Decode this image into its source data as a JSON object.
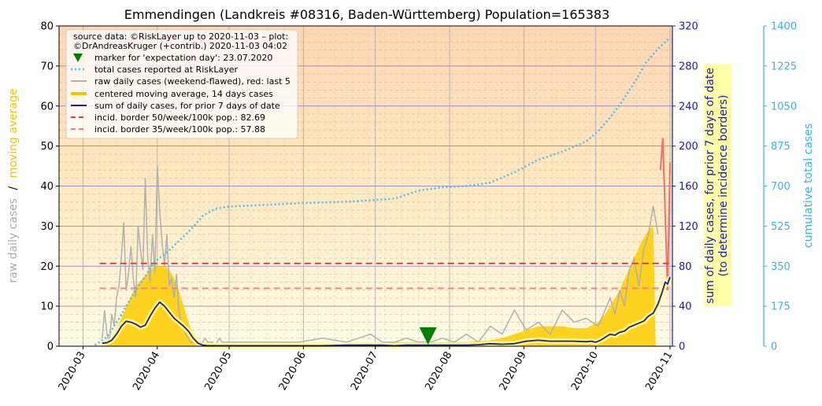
{
  "chart_data": {
    "type": "line",
    "title": "Emmendingen (Landkreis #08316, Baden-Württemberg) Population=165383",
    "ylabel_left": {
      "part1": "raw daily cases",
      "sep": "/",
      "part2": "moving average"
    },
    "ylabel_right1": [
      "sum of daily cases, for prior 7 days of date",
      "(to determine incidence borders)"
    ],
    "ylabel_right2": "cumulative total cases",
    "xlim_days": [
      -10,
      246
    ],
    "ylim_left": [
      0,
      80
    ],
    "ylim_right1": [
      0,
      320
    ],
    "ylim_right2": [
      0,
      1400
    ],
    "y_ticks_left": [
      0,
      10,
      20,
      30,
      40,
      50,
      60,
      70,
      80
    ],
    "y_ticks_right1": [
      0,
      40,
      80,
      120,
      160,
      200,
      240,
      280,
      320
    ],
    "y_ticks_right2": [
      0,
      175,
      350,
      525,
      700,
      875,
      1050,
      1225,
      1400
    ],
    "x_ticks": [
      {
        "label": "2020-03",
        "day": 0
      },
      {
        "label": "2020-04",
        "day": 31
      },
      {
        "label": "2020-05",
        "day": 61
      },
      {
        "label": "2020-06",
        "day": 92
      },
      {
        "label": "2020-07",
        "day": 122
      },
      {
        "label": "2020-08",
        "day": 153
      },
      {
        "label": "2020-09",
        "day": 184
      },
      {
        "label": "2020-10",
        "day": 214
      },
      {
        "label": "2020-11",
        "day": 245
      }
    ],
    "legend": [
      "source data: ©RiskLayer up to 2020-11-03 – plot:",
      "©DrAndreasKruger (+contrib.) 2020-11-03 04:02",
      "marker for 'expectation day': 23.07.2020",
      "total cases reported at RiskLayer",
      "raw daily cases (weekend-flawed), red: last 5",
      "centered moving average, 14 days cases",
      "sum of daily cases, for prior 7 days of date",
      "incid. border 50/week/100k pop.: 82.69",
      "incid. border 35/week/100k pop.: 57.88"
    ],
    "expectation_day": 144,
    "incidence_border_50": 82.69,
    "incidence_border_35": 57.88,
    "raw_daily": {
      "days": [
        8,
        9,
        10,
        11,
        12,
        13,
        14,
        15,
        16,
        17,
        18,
        19,
        20,
        21,
        22,
        23,
        24,
        25,
        26,
        27,
        28,
        29,
        30,
        31,
        32,
        33,
        34,
        35,
        36,
        37,
        38,
        39,
        40,
        41,
        42,
        43,
        44,
        45,
        46,
        47,
        48,
        49,
        50,
        51,
        52,
        53,
        54,
        55,
        56,
        57,
        58,
        60,
        65,
        70,
        75,
        80,
        90,
        100,
        110,
        120,
        125,
        130,
        135,
        140,
        145,
        150,
        155,
        160,
        165,
        170,
        175,
        180,
        185,
        190,
        195,
        200,
        205,
        210,
        215,
        220,
        222,
        224,
        226,
        228,
        230,
        232,
        234,
        236,
        238,
        240
      ],
      "values": [
        2,
        9,
        3,
        1,
        8,
        5,
        12,
        15,
        22,
        31,
        14,
        18,
        25,
        17,
        12,
        30,
        24,
        19,
        42,
        22,
        16,
        28,
        18,
        45,
        34,
        26,
        20,
        28,
        15,
        17,
        12,
        18,
        9,
        6,
        5,
        3,
        2,
        1,
        1,
        2,
        1,
        1,
        1,
        2,
        1,
        1,
        1,
        0,
        1,
        2,
        1,
        1,
        1,
        1,
        1,
        1,
        1,
        2,
        1,
        3,
        1,
        1,
        2,
        1,
        1,
        2,
        1,
        3,
        1,
        5,
        3,
        9,
        4,
        6,
        3,
        9,
        6,
        7,
        5,
        12,
        8,
        14,
        10,
        19,
        22,
        15,
        24,
        28,
        35,
        28
      ]
    },
    "raw_last5": {
      "days": [
        241,
        242,
        243,
        244,
        245
      ],
      "values": [
        44,
        52,
        33,
        14,
        46
      ]
    },
    "moving_average": {
      "days": [
        7,
        10,
        13,
        16,
        19,
        22,
        25,
        28,
        30,
        32,
        34,
        36,
        38,
        40,
        42,
        44,
        46,
        48,
        50,
        55,
        60,
        70,
        80,
        90,
        100,
        110,
        120,
        130,
        140,
        150,
        160,
        170,
        175,
        180,
        185,
        190,
        195,
        200,
        205,
        210,
        215,
        218,
        221,
        224,
        227,
        230,
        233,
        236,
        238,
        239
      ],
      "values": [
        0,
        1,
        3,
        7,
        11,
        15,
        17,
        19,
        20,
        20,
        20,
        19,
        17,
        14,
        10,
        6,
        3,
        1.5,
        1,
        0.5,
        0.5,
        0.5,
        0.5,
        0.5,
        0.5,
        0.6,
        0.8,
        1,
        1,
        1,
        1,
        1.5,
        2,
        3,
        4,
        5,
        5,
        5,
        4.5,
        4.5,
        6,
        8,
        11,
        14,
        18,
        22,
        26,
        29,
        30,
        0
      ]
    },
    "cumulative": {
      "days": [
        5,
        10,
        15,
        20,
        25,
        30,
        35,
        40,
        45,
        50,
        55,
        60,
        70,
        80,
        90,
        100,
        110,
        120,
        130,
        140,
        150,
        160,
        170,
        180,
        190,
        200,
        210,
        215,
        220,
        225,
        230,
        235,
        240,
        245
      ],
      "values": [
        5,
        40,
        120,
        210,
        290,
        370,
        410,
        460,
        510,
        570,
        600,
        610,
        615,
        620,
        625,
        628,
        632,
        638,
        645,
        680,
        695,
        700,
        715,
        760,
        815,
        850,
        895,
        940,
        1000,
        1070,
        1150,
        1240,
        1300,
        1350
      ]
    },
    "sum7": {
      "days": [
        8,
        10,
        12,
        14,
        16,
        18,
        20,
        22,
        24,
        26,
        28,
        30,
        32,
        34,
        36,
        38,
        40,
        42,
        44,
        46,
        48,
        50,
        52,
        55,
        60,
        65,
        70,
        80,
        90,
        100,
        110,
        120,
        125,
        130,
        135,
        140,
        145,
        150,
        155,
        160,
        165,
        170,
        175,
        180,
        185,
        190,
        195,
        200,
        205,
        210,
        212,
        214,
        216,
        218,
        220,
        222,
        224,
        226,
        228,
        230,
        232,
        234,
        236,
        238,
        240,
        242,
        243,
        244,
        245,
        246
      ],
      "values": [
        3,
        3.5,
        6,
        12,
        20,
        25,
        24,
        22,
        19,
        21,
        30,
        38,
        44,
        40,
        34,
        28,
        24,
        20,
        15,
        8,
        3,
        1,
        0.5,
        0.5,
        0.5,
        0.5,
        0.5,
        0.5,
        0.5,
        0.5,
        1,
        1,
        1,
        0.5,
        1,
        1,
        1,
        1,
        1,
        1,
        1.5,
        2.5,
        2,
        2.5,
        5,
        6,
        5,
        5,
        5,
        4.5,
        5,
        4,
        6,
        9,
        12,
        11,
        14,
        15,
        19,
        21,
        23,
        25,
        30,
        33,
        42,
        56,
        64,
        62,
        69,
        0
      ]
    }
  }
}
